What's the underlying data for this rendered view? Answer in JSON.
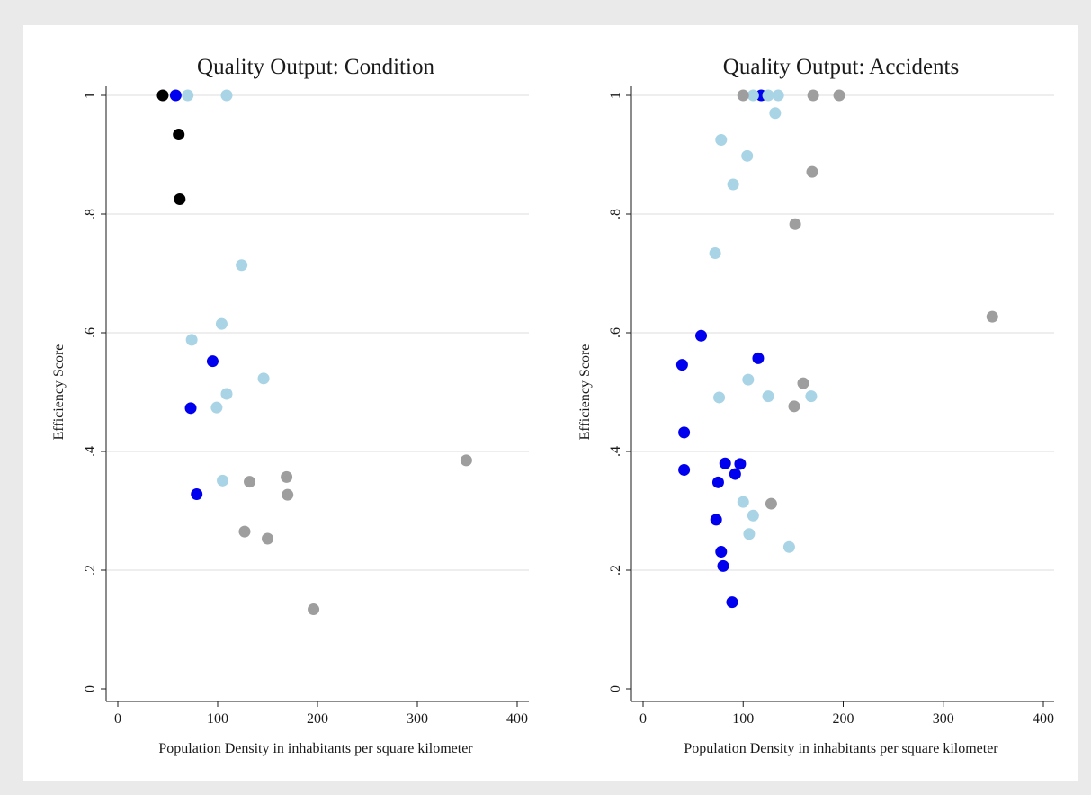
{
  "chart_data": [
    {
      "type": "scatter",
      "title": "Quality Output: Condition",
      "xlabel": "Population Density in inhabitants per square kilometer",
      "ylabel": "Efficiency Score",
      "xlim": [
        0,
        400
      ],
      "ylim": [
        0,
        1
      ],
      "x_ticks": [
        "0",
        "100",
        "200",
        "300",
        "400"
      ],
      "y_ticks": [
        "0",
        ".2",
        ".4",
        ".6",
        ".8",
        "1"
      ],
      "grid": "horizontal",
      "series": [
        {
          "color": "#000000",
          "points": [
            [
              45,
              1.0
            ],
            [
              61,
              0.934
            ],
            [
              62,
              0.825
            ]
          ]
        },
        {
          "color": "#0000ee",
          "points": [
            [
              58,
              1.0
            ],
            [
              95,
              0.552
            ],
            [
              73,
              0.473
            ],
            [
              79,
              0.328
            ]
          ]
        },
        {
          "color": "#a8d4e6",
          "points": [
            [
              70,
              1.0
            ],
            [
              109,
              1.0
            ],
            [
              124,
              0.714
            ],
            [
              104,
              0.615
            ],
            [
              74,
              0.588
            ],
            [
              146,
              0.523
            ],
            [
              109,
              0.497
            ],
            [
              99,
              0.474
            ],
            [
              105,
              0.351
            ]
          ]
        },
        {
          "color": "#9e9e9e",
          "points": [
            [
              349,
              0.385
            ],
            [
              169,
              0.357
            ],
            [
              132,
              0.349
            ],
            [
              170,
              0.327
            ],
            [
              127,
              0.265
            ],
            [
              150,
              0.253
            ],
            [
              196,
              0.134
            ]
          ]
        }
      ]
    },
    {
      "type": "scatter",
      "title": "Quality Output: Accidents",
      "xlabel": "Population Density in inhabitants per square kilometer",
      "ylabel": "Efficiency Score",
      "xlim": [
        0,
        400
      ],
      "ylim": [
        0,
        1
      ],
      "x_ticks": [
        "0",
        "100",
        "200",
        "300",
        "400"
      ],
      "y_ticks": [
        "0",
        ".2",
        ".4",
        ".6",
        ".8",
        "1"
      ],
      "grid": "horizontal",
      "series": [
        {
          "color": "#0000ee",
          "points": [
            [
              118,
              1.0
            ],
            [
              58,
              0.595
            ],
            [
              115,
              0.557
            ],
            [
              39,
              0.546
            ],
            [
              41,
              0.432
            ],
            [
              41,
              0.369
            ],
            [
              82,
              0.38
            ],
            [
              97,
              0.379
            ],
            [
              92,
              0.362
            ],
            [
              75,
              0.348
            ],
            [
              73,
              0.285
            ],
            [
              78,
              0.231
            ],
            [
              80,
              0.207
            ],
            [
              89,
              0.146
            ]
          ]
        },
        {
          "color": "#a8d4e6",
          "points": [
            [
              110,
              1.0
            ],
            [
              125,
              1.0
            ],
            [
              135,
              1.0
            ],
            [
              132,
              0.97
            ],
            [
              78,
              0.925
            ],
            [
              104,
              0.898
            ],
            [
              90,
              0.85
            ],
            [
              72,
              0.734
            ],
            [
              105,
              0.521
            ],
            [
              125,
              0.493
            ],
            [
              168,
              0.493
            ],
            [
              76,
              0.491
            ],
            [
              100,
              0.315
            ],
            [
              110,
              0.292
            ],
            [
              106,
              0.261
            ],
            [
              146,
              0.239
            ]
          ]
        },
        {
          "color": "#9e9e9e",
          "points": [
            [
              100,
              1.0
            ],
            [
              170,
              1.0
            ],
            [
              196,
              1.0
            ],
            [
              169,
              0.871
            ],
            [
              152,
              0.783
            ],
            [
              349,
              0.627
            ],
            [
              160,
              0.515
            ],
            [
              151,
              0.476
            ],
            [
              128,
              0.312
            ]
          ]
        }
      ]
    }
  ]
}
